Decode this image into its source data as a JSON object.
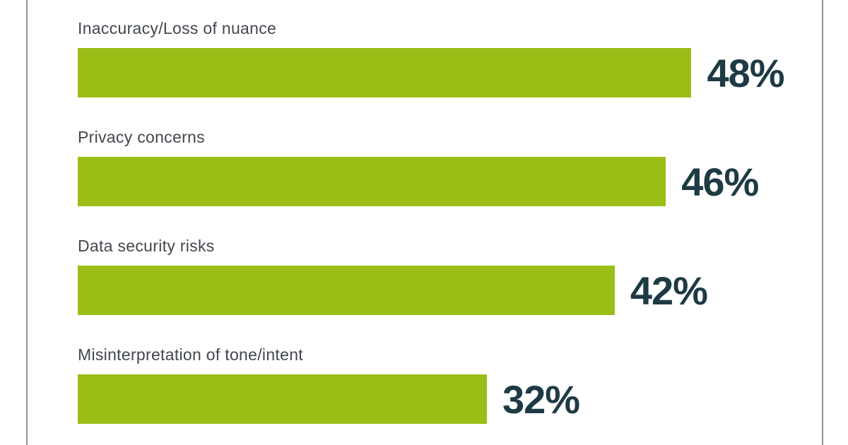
{
  "page": {
    "background": "#ffffff",
    "card_border_color": "#8f9194"
  },
  "chart_data": {
    "type": "bar",
    "orientation": "horizontal",
    "title": "",
    "categories": [
      "Inaccuracy/Loss of nuance",
      "Privacy concerns",
      "Data security risks",
      "Misinterpretation of tone/intent"
    ],
    "values": [
      48,
      46,
      42,
      32
    ],
    "value_labels": [
      "48%",
      "46%",
      "42%",
      "32%"
    ],
    "value_suffix": "%",
    "xlim": [
      0,
      58.2
    ],
    "bar_color": "#9abe16",
    "value_label_color": "#1e3a44",
    "category_label_color": "#42474d",
    "grid": false,
    "legend": false,
    "value_label_position": "right-of-bar"
  }
}
